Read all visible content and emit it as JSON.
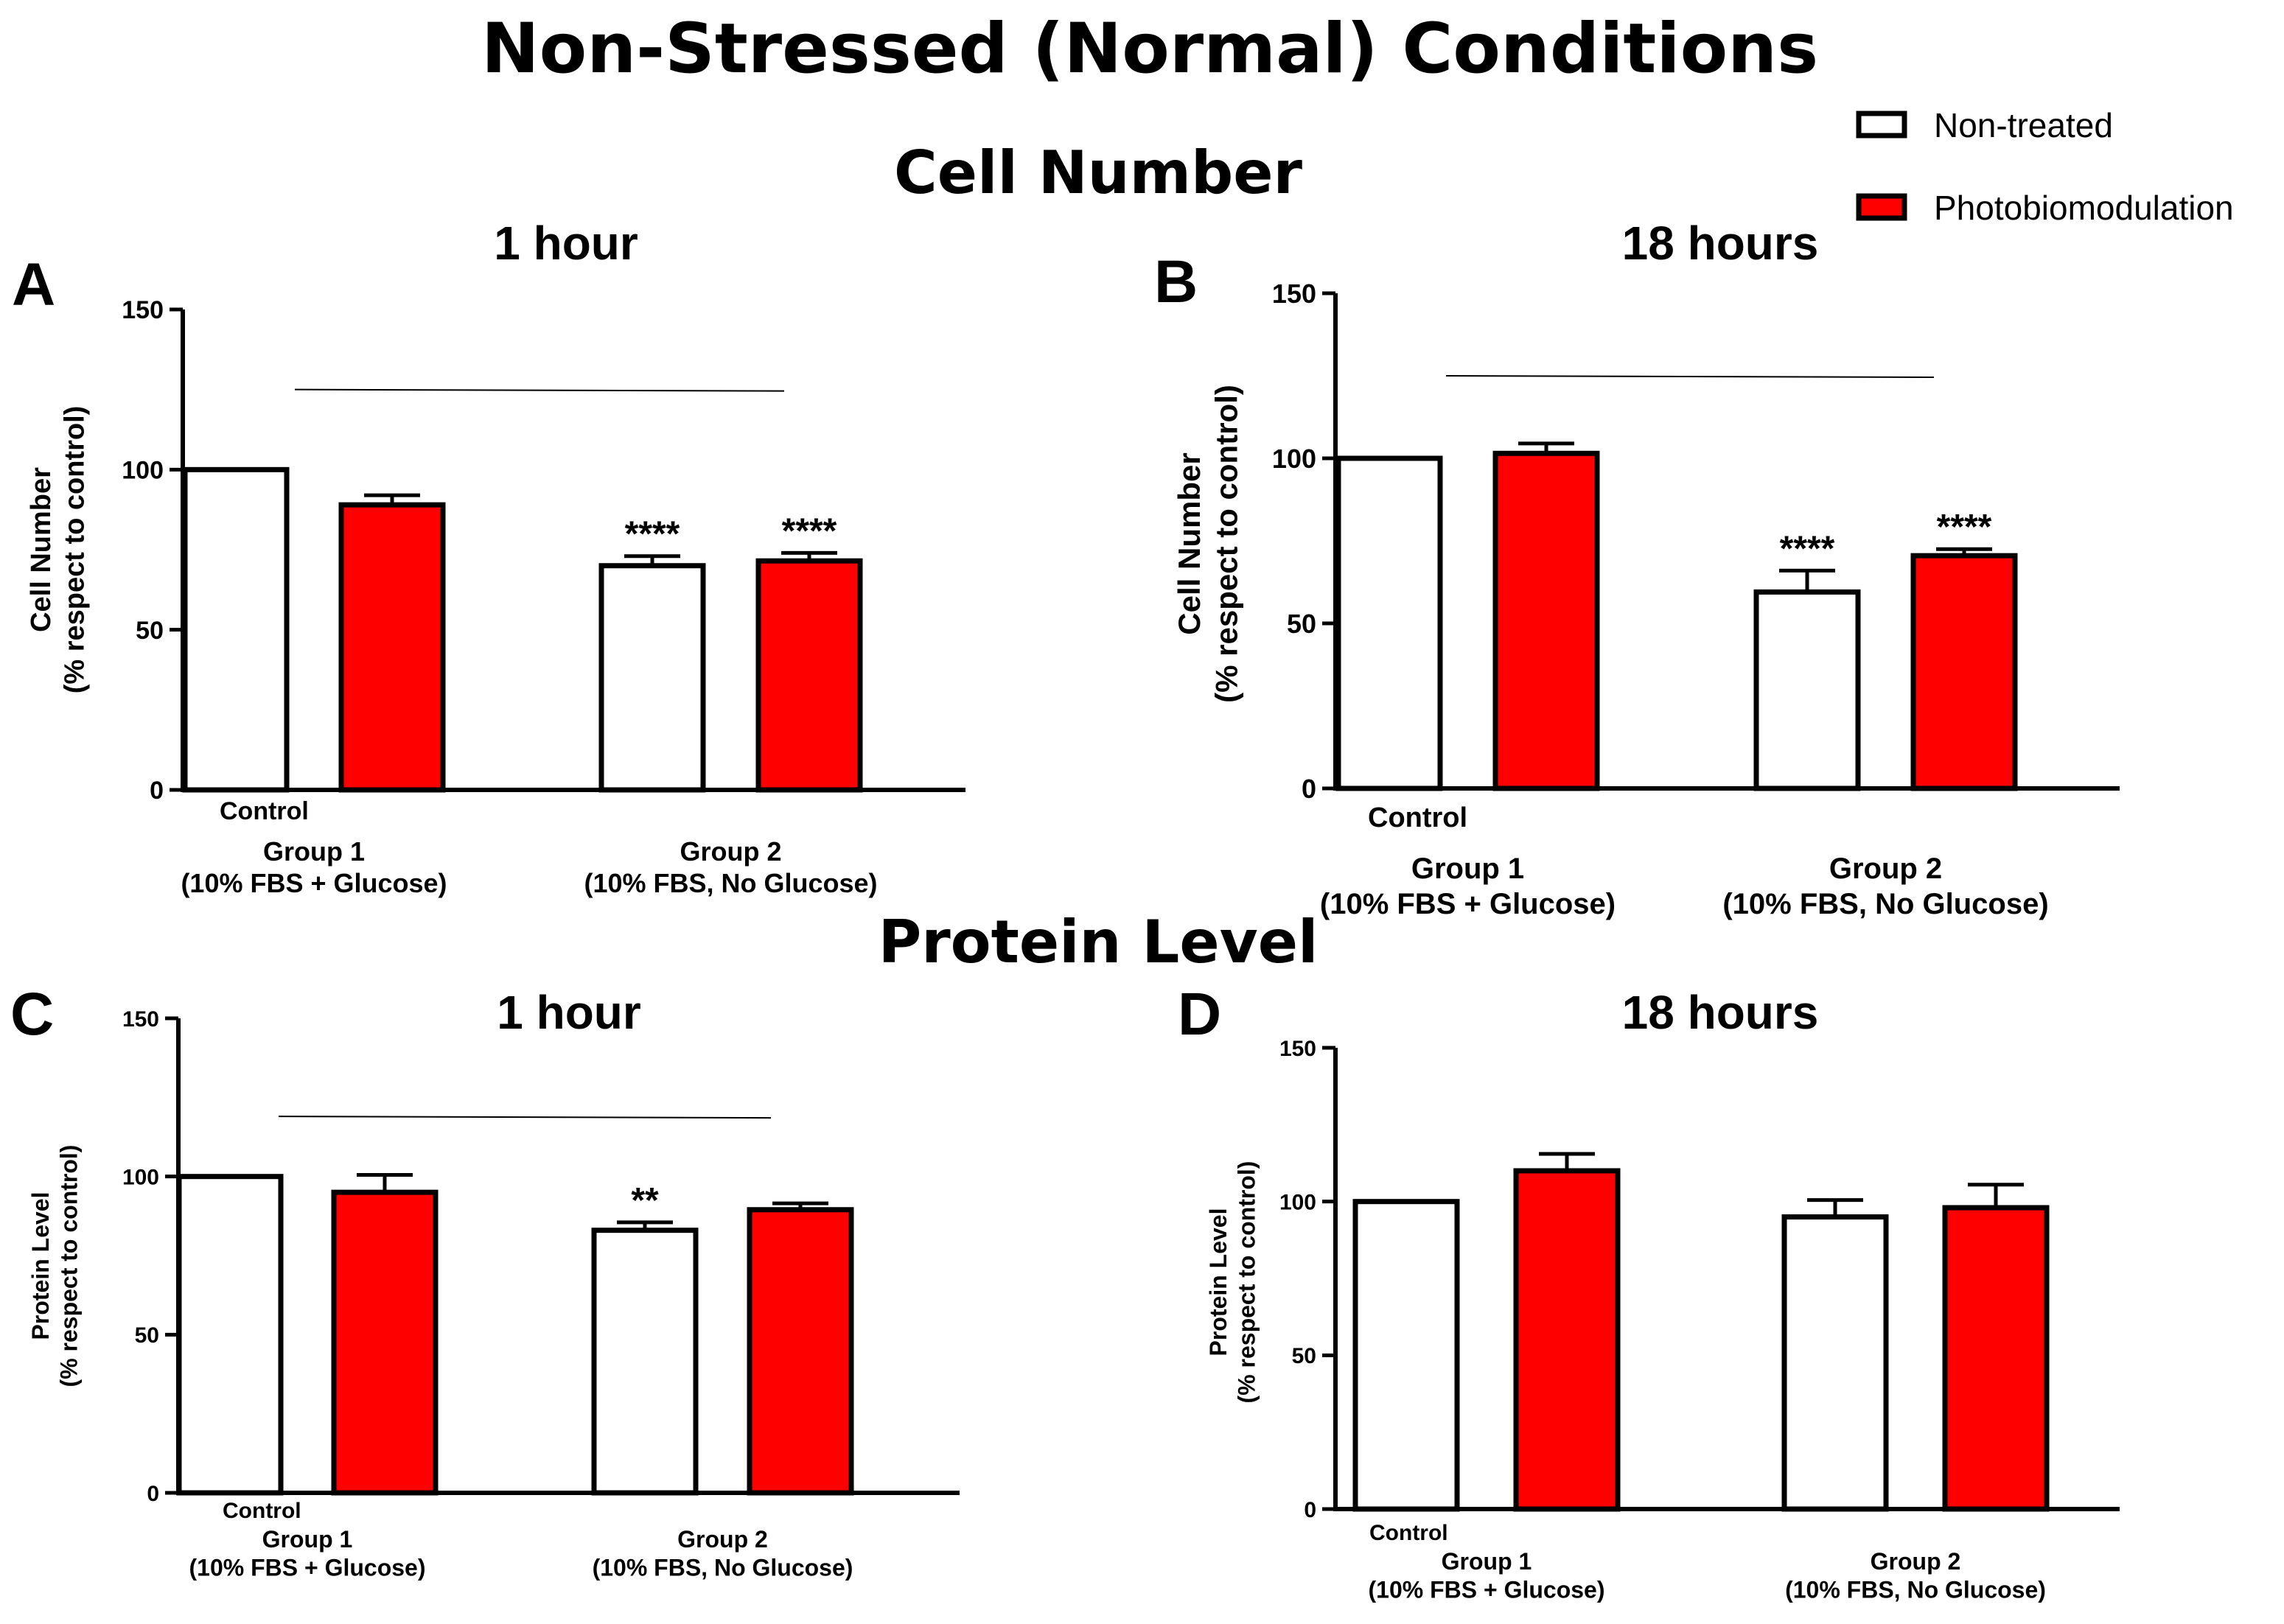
{
  "main_title": "Non-Stressed (Normal) Conditions",
  "section_titles": [
    "Cell Number",
    "Protein Level"
  ],
  "legend": [
    {
      "label": "Non-treated",
      "color": "#ffffff"
    },
    {
      "label": "Photobiomodulation",
      "color": "#ff0000"
    }
  ],
  "colors": {
    "non_treated": "#ffffff",
    "photobiomodulation": "#ff0000",
    "axis": "#000000"
  },
  "chart_data": [
    {
      "type": "bar",
      "panel": "A",
      "title": "1 hour",
      "ylabel": [
        "Cell Number",
        "(% respect to control)"
      ],
      "ylim": [
        0,
        150
      ],
      "yticks": [
        0,
        50,
        100,
        150
      ],
      "control_label": "Control",
      "groups": [
        [
          "Group 1",
          "(10% FBS + Glucose)"
        ],
        [
          "Group 2",
          "(10% FBS, No Glucose)"
        ]
      ],
      "bars": [
        {
          "group": 0,
          "series": "Non-treated",
          "value": 100,
          "err": 0,
          "sig": ""
        },
        {
          "group": 0,
          "series": "Photobiomodulation",
          "value": 89,
          "err": 3,
          "sig": ""
        },
        {
          "group": 1,
          "series": "Non-treated",
          "value": 70,
          "err": 3,
          "sig": "****"
        },
        {
          "group": 1,
          "series": "Photobiomodulation",
          "value": 71.5,
          "err": 2.5,
          "sig": "****"
        }
      ],
      "bracket_y": 125
    },
    {
      "type": "bar",
      "panel": "B",
      "title": "18 hours",
      "ylabel": [
        "Cell Number",
        "(% respect to control)"
      ],
      "ylim": [
        0,
        150
      ],
      "yticks": [
        0,
        50,
        100,
        150
      ],
      "control_label": "Control",
      "groups": [
        [
          "Group 1",
          "(10% FBS + Glucose)"
        ],
        [
          "Group 2",
          "(10% FBS, No Glucose)"
        ]
      ],
      "bars": [
        {
          "group": 0,
          "series": "Non-treated",
          "value": 100,
          "err": 0,
          "sig": ""
        },
        {
          "group": 0,
          "series": "Photobiomodulation",
          "value": 101.5,
          "err": 3,
          "sig": ""
        },
        {
          "group": 1,
          "series": "Non-treated",
          "value": 59.5,
          "err": 6.5,
          "sig": "****"
        },
        {
          "group": 1,
          "series": "Photobiomodulation",
          "value": 70.5,
          "err": 2,
          "sig": "****"
        }
      ],
      "bracket_y": 125
    },
    {
      "type": "bar",
      "panel": "C",
      "title": "1 hour",
      "ylabel": [
        "Protein Level",
        "(% respect to control)"
      ],
      "ylim": [
        0,
        150
      ],
      "yticks": [
        0,
        50,
        100,
        150
      ],
      "control_label": "Control",
      "groups": [
        [
          "Group 1",
          "(10% FBS + Glucose)"
        ],
        [
          "Group 2",
          "(10% FBS, No Glucose)"
        ]
      ],
      "bars": [
        {
          "group": 0,
          "series": "Non-treated",
          "value": 100,
          "err": 0,
          "sig": ""
        },
        {
          "group": 0,
          "series": "Photobiomodulation",
          "value": 95,
          "err": 5.5,
          "sig": ""
        },
        {
          "group": 1,
          "series": "Non-treated",
          "value": 83,
          "err": 2.5,
          "sig": "**"
        },
        {
          "group": 1,
          "series": "Photobiomodulation",
          "value": 89.5,
          "err": 2,
          "sig": ""
        }
      ],
      "bracket_y": 119
    },
    {
      "type": "bar",
      "panel": "D",
      "title": "18 hours",
      "ylabel": [
        "Protein Level",
        "(% respect to control)"
      ],
      "ylim": [
        0,
        150
      ],
      "yticks": [
        0,
        50,
        100,
        150
      ],
      "control_label": "Control",
      "groups": [
        [
          "Group 1",
          "(10% FBS + Glucose)"
        ],
        [
          "Group 2",
          "(10% FBS, No Glucose)"
        ]
      ],
      "bars": [
        {
          "group": 0,
          "series": "Non-treated",
          "value": 100,
          "err": 0,
          "sig": ""
        },
        {
          "group": 0,
          "series": "Photobiomodulation",
          "value": 110,
          "err": 5.5,
          "sig": ""
        },
        {
          "group": 1,
          "series": "Non-treated",
          "value": 95,
          "err": 5.5,
          "sig": ""
        },
        {
          "group": 1,
          "series": "Photobiomodulation",
          "value": 98,
          "err": 7.5,
          "sig": ""
        }
      ],
      "bracket_y": null
    }
  ]
}
